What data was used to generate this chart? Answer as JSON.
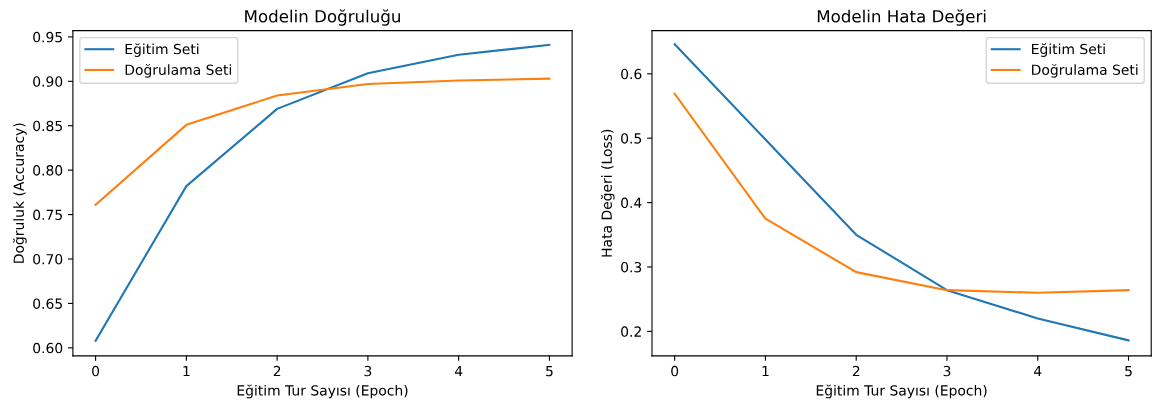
{
  "chart_data": [
    {
      "type": "line",
      "title": "Modelin Doğruluğu",
      "xlabel": "Eğitim Tur Sayısı (Epoch)",
      "ylabel": "Doğruluk (Accuracy)",
      "x": [
        0,
        1,
        2,
        3,
        4,
        5
      ],
      "series": [
        {
          "name": "Eğitim Seti",
          "color": "#1f77b4",
          "values": [
            0.608,
            0.782,
            0.869,
            0.909,
            0.93,
            0.941
          ]
        },
        {
          "name": "Doğrulama Seti",
          "color": "#ff7f0e",
          "values": [
            0.761,
            0.851,
            0.884,
            0.897,
            0.901,
            0.903
          ]
        }
      ],
      "xlim": [
        -0.25,
        5.25
      ],
      "xticks": [
        0,
        1,
        2,
        3,
        4,
        5
      ],
      "ylim": [
        0.591,
        0.957
      ],
      "yticks": [
        {
          "value": 0.6,
          "label": "0.60"
        },
        {
          "value": 0.65,
          "label": "0.65"
        },
        {
          "value": 0.7,
          "label": "0.70"
        },
        {
          "value": 0.75,
          "label": "0.75"
        },
        {
          "value": 0.8,
          "label": "0.80"
        },
        {
          "value": 0.85,
          "label": "0.85"
        },
        {
          "value": 0.9,
          "label": "0.90"
        },
        {
          "value": 0.95,
          "label": "0.95"
        }
      ],
      "grid": false,
      "legend": "top left"
    },
    {
      "type": "line",
      "title": "Modelin Hata Değeri",
      "xlabel": "Eğitim Tur Sayısı (Epoch)",
      "ylabel": "Hata Değeri (Loss)",
      "x": [
        0,
        1,
        2,
        3,
        4,
        5
      ],
      "series": [
        {
          "name": "Eğitim Seti",
          "color": "#1f77b4",
          "values": [
            0.646,
            0.498,
            0.35,
            0.264,
            0.22,
            0.186
          ]
        },
        {
          "name": "Doğrulama Seti",
          "color": "#ff7f0e",
          "values": [
            0.569,
            0.375,
            0.292,
            0.264,
            0.26,
            0.264
          ]
        }
      ],
      "xlim": [
        -0.25,
        5.25
      ],
      "xticks": [
        0,
        1,
        2,
        3,
        4,
        5
      ],
      "ylim": [
        0.162,
        0.667
      ],
      "yticks": [
        0.2,
        0.3,
        0.4,
        0.5,
        0.6
      ],
      "grid": false,
      "legend": "top right"
    }
  ]
}
